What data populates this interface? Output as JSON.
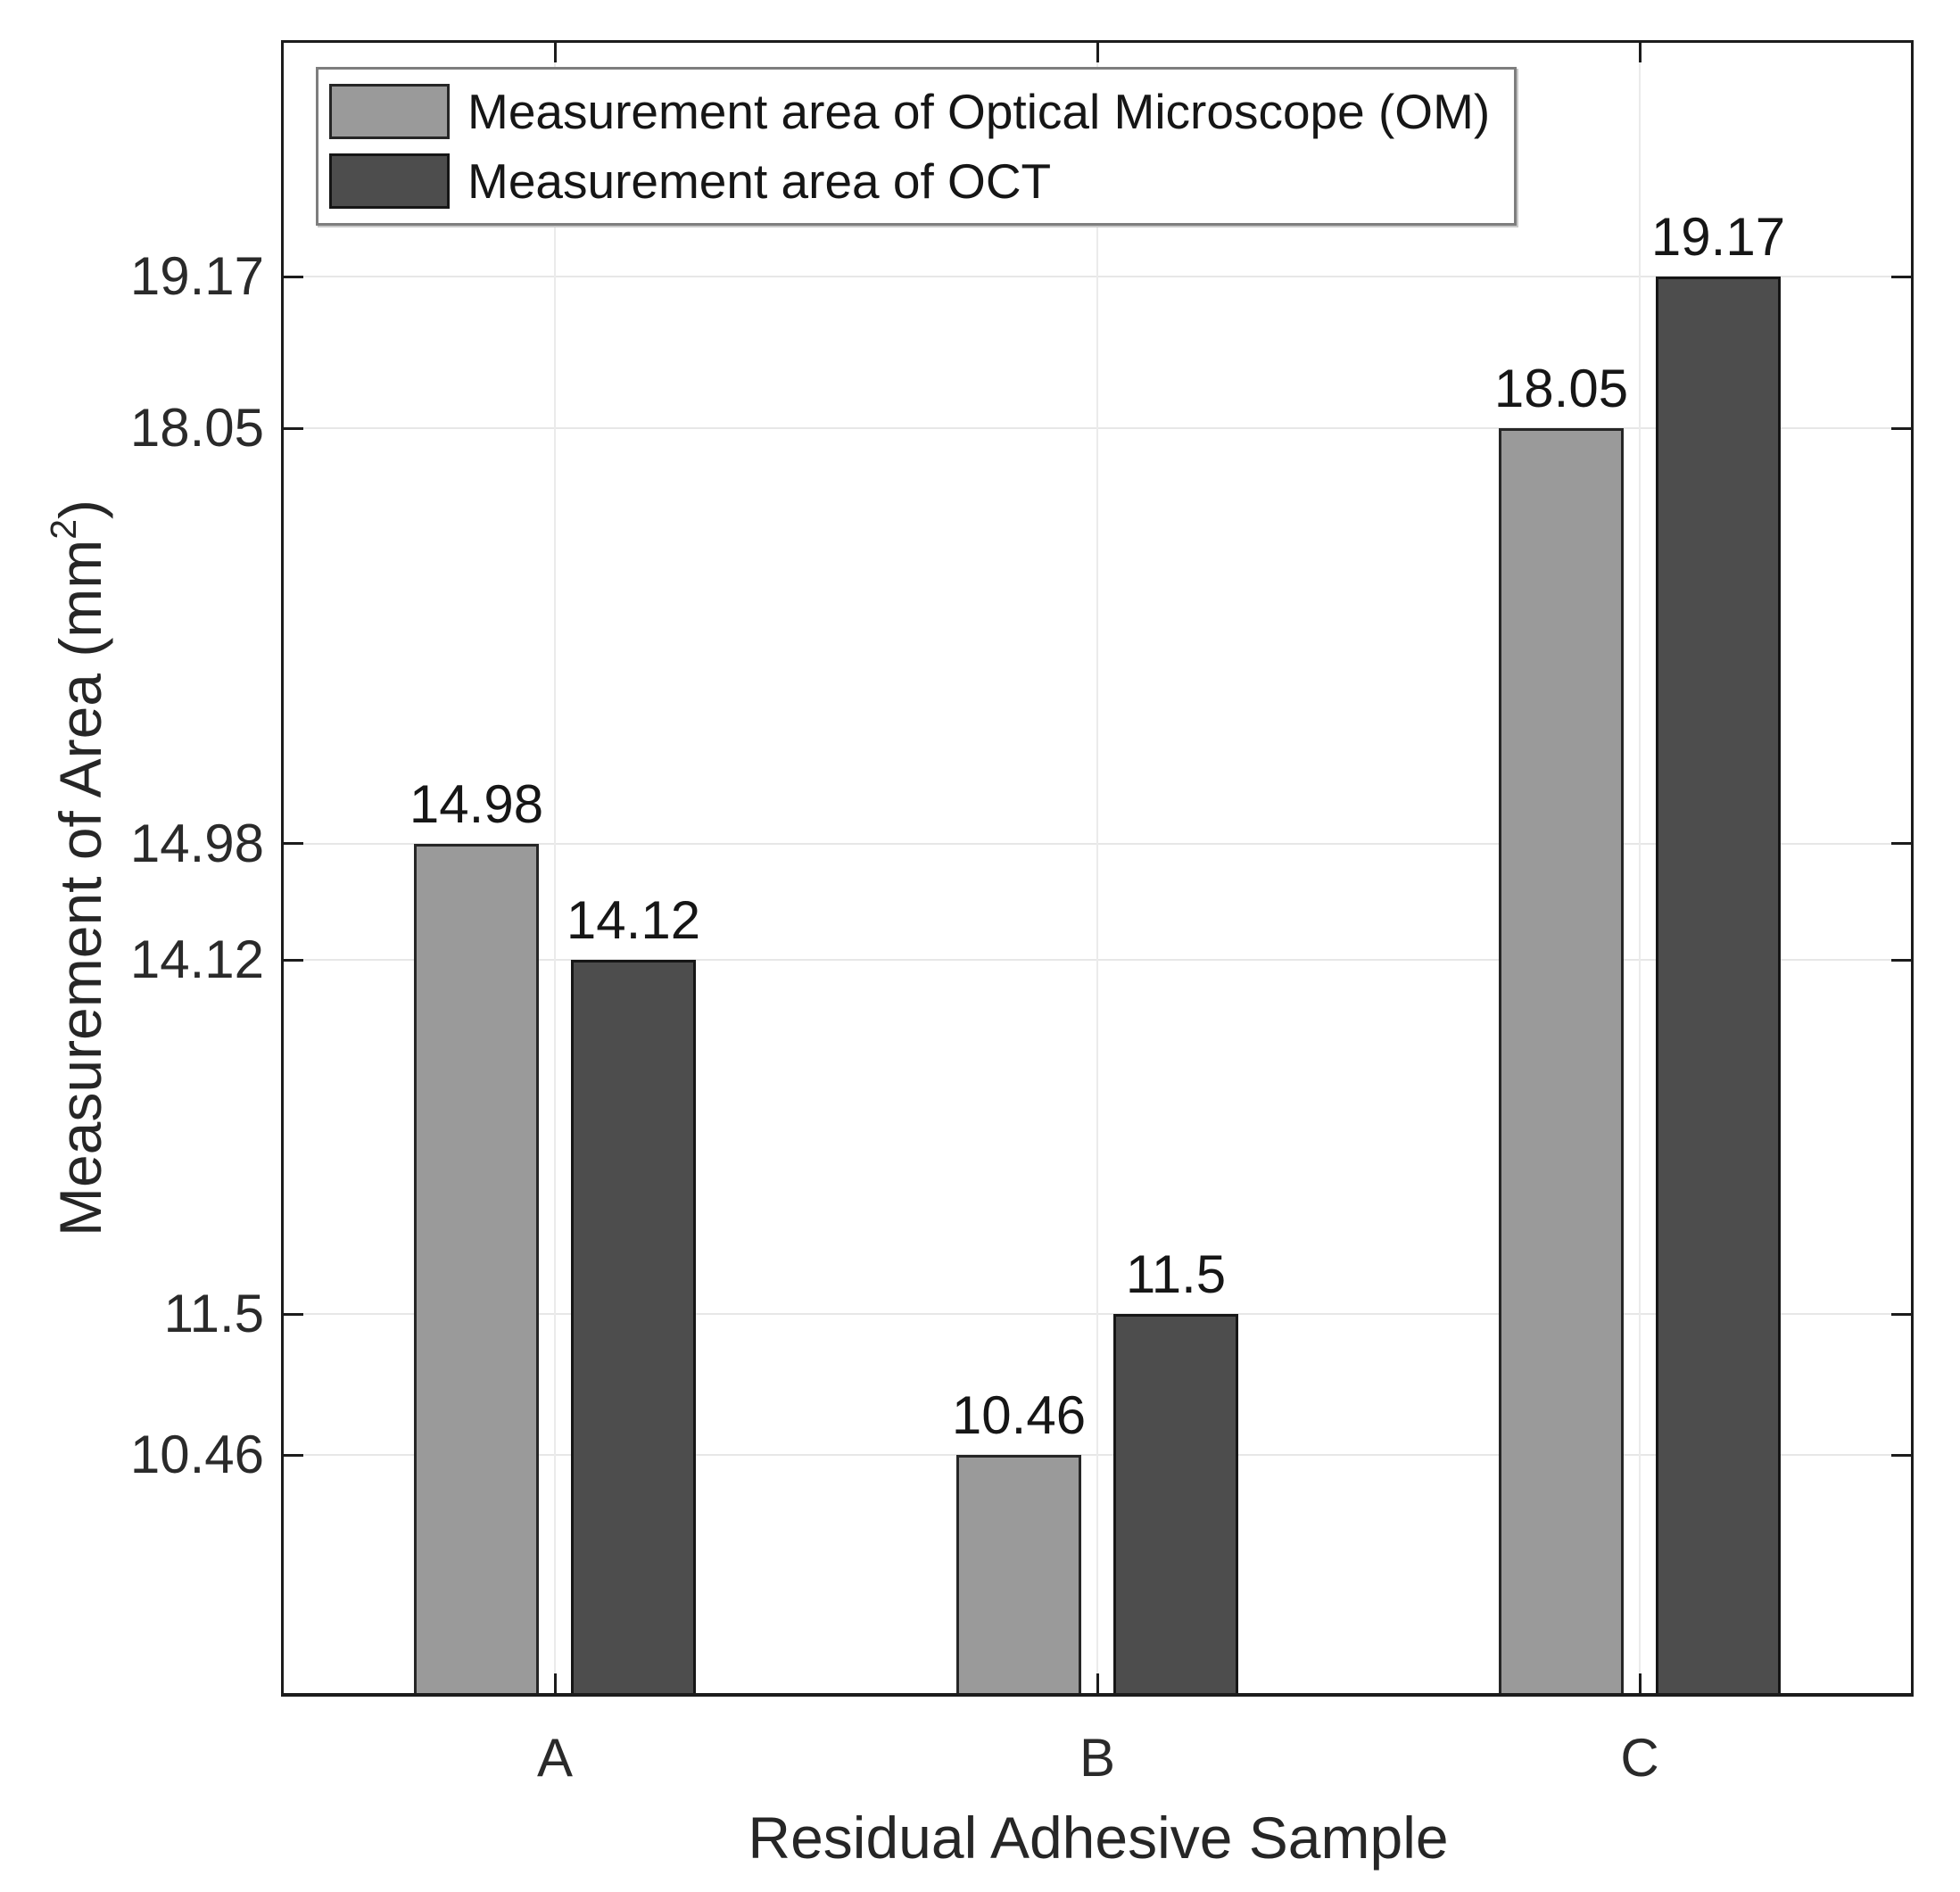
{
  "chart_data": {
    "type": "bar",
    "title": "",
    "categories": [
      "A",
      "B",
      "C"
    ],
    "series": [
      {
        "name": "Measurement area of Optical Microscope (OM)",
        "values": [
          14.98,
          10.46,
          18.05
        ],
        "value_labels": [
          "14.98",
          "10.46",
          "18.05"
        ],
        "color": "#9a9a9a",
        "edge_color": "#262626"
      },
      {
        "name": "Measurement area of OCT",
        "values": [
          14.12,
          11.5,
          19.17
        ],
        "value_labels": [
          "14.12",
          "11.5",
          "19.17"
        ],
        "color": "#4d4d4d",
        "edge_color": "#161616"
      }
    ],
    "xlabel": "Residual Adhesive Sample",
    "ylabel_parts": {
      "prefix": "Measurement of Area (mm",
      "sup": "2",
      "suffix": ")"
    },
    "yticks": [
      10.46,
      11.5,
      14.12,
      14.98,
      18.05,
      19.17
    ],
    "ytick_labels": [
      "10.46",
      "11.5",
      "14.12",
      "14.98",
      "18.05",
      "19.17"
    ],
    "ylim": [
      8.7,
      20.9
    ],
    "grid": true,
    "legend_position": "top-left"
  }
}
